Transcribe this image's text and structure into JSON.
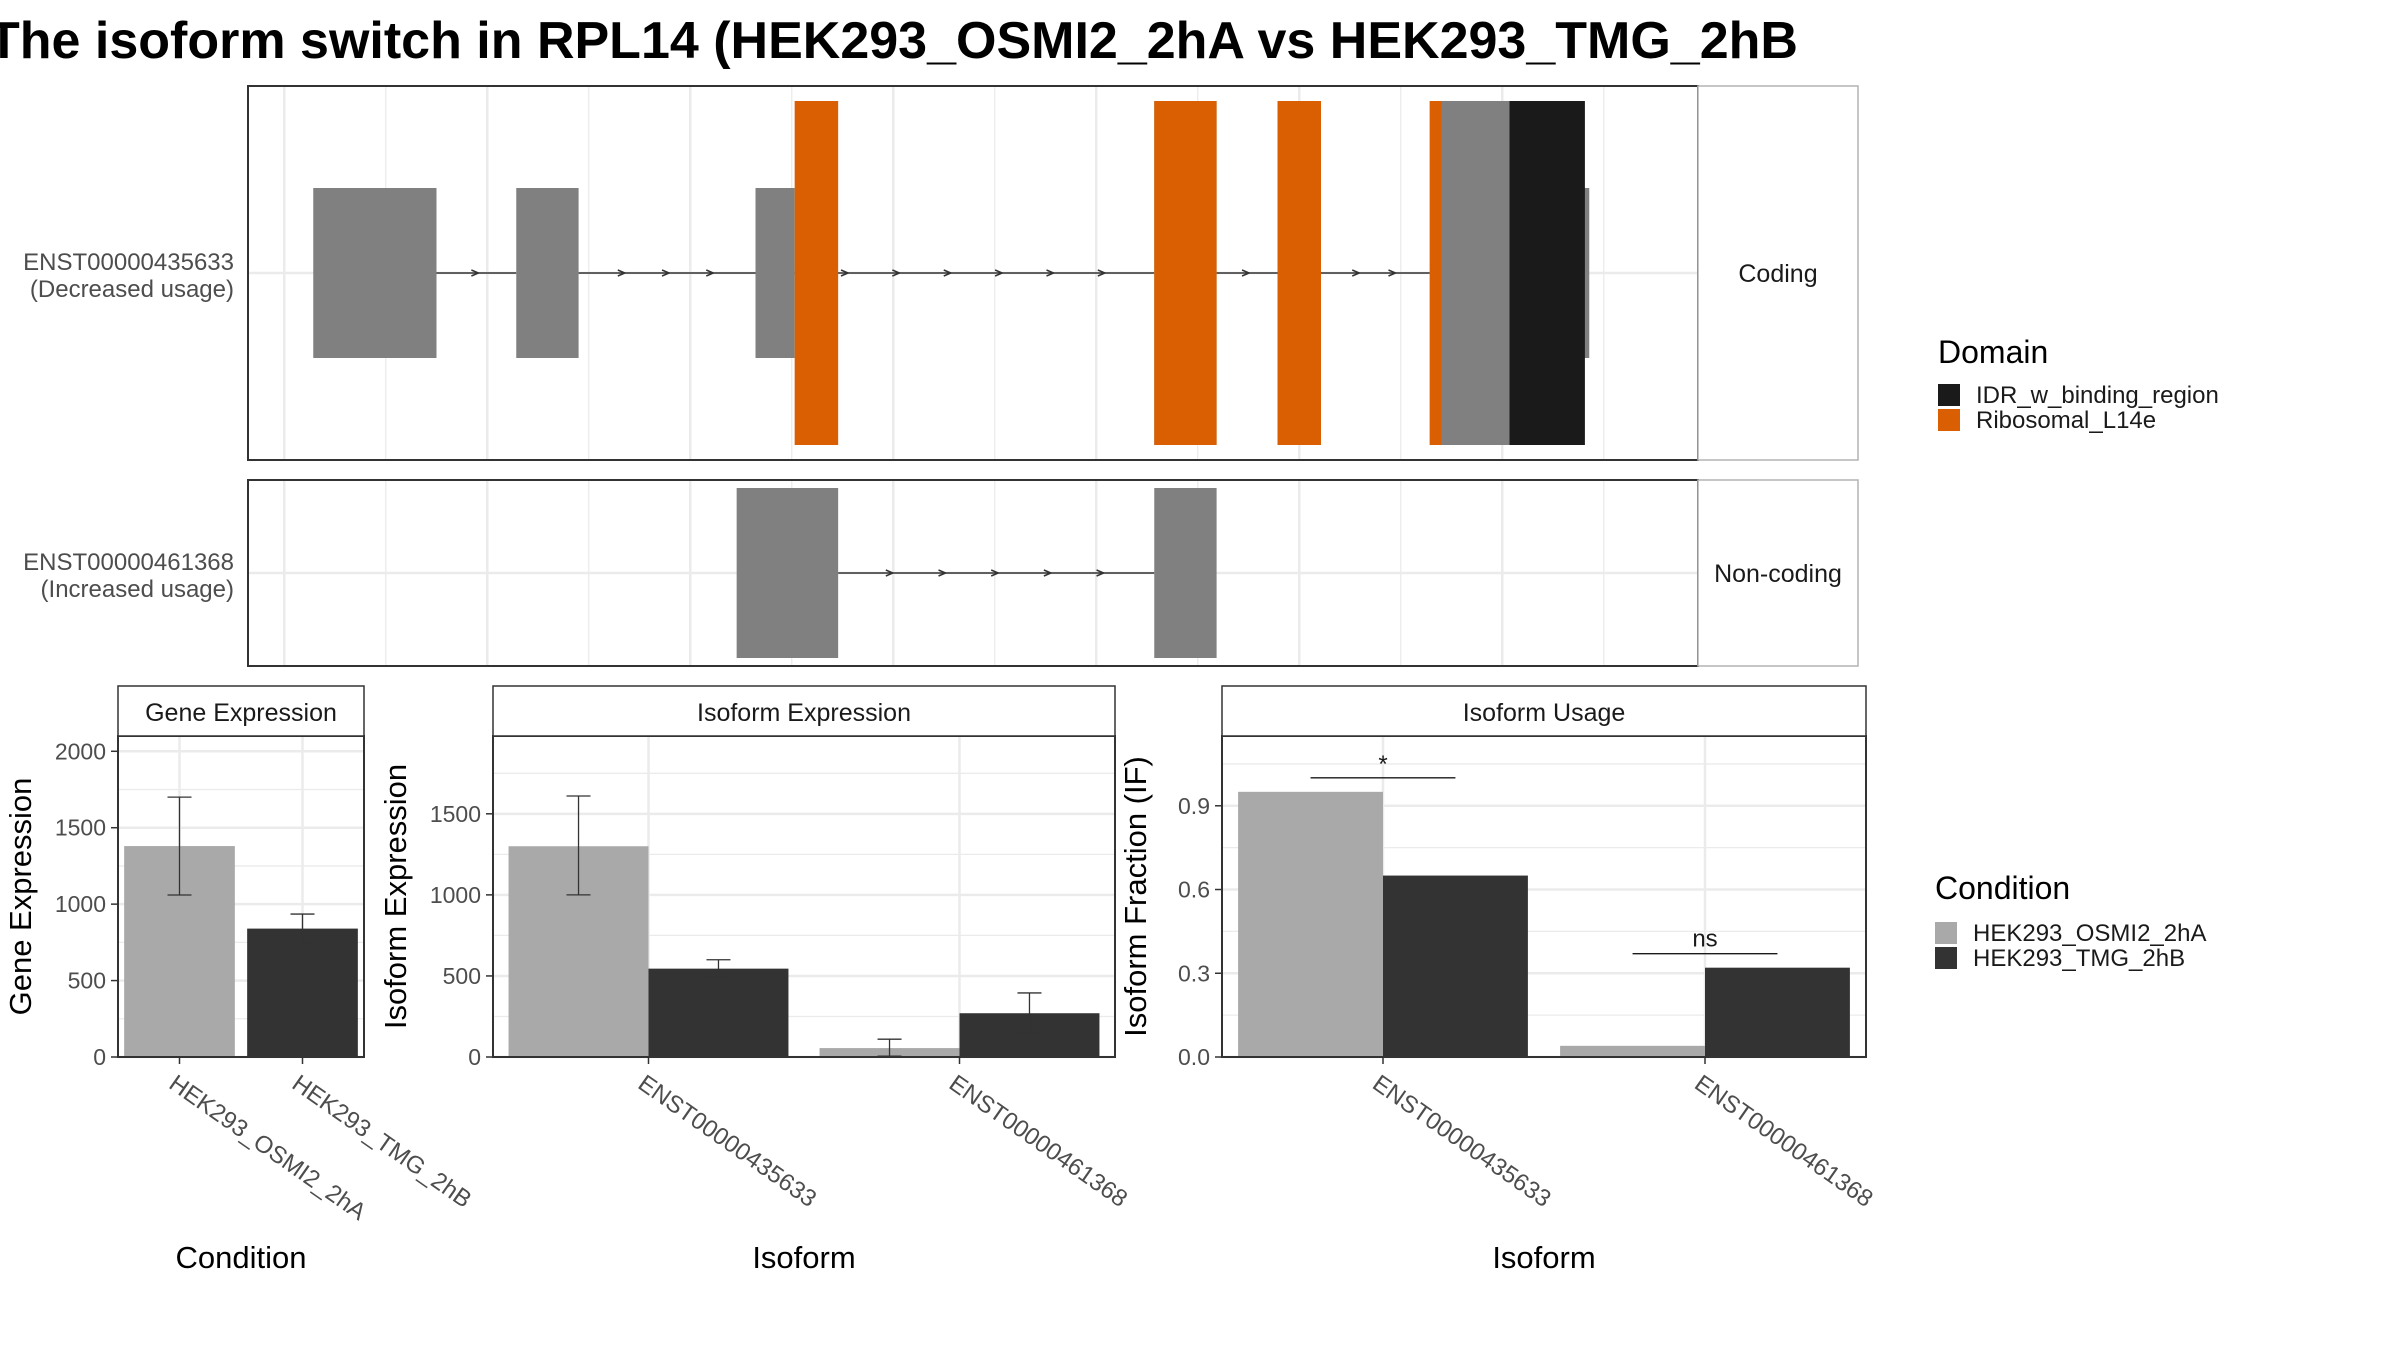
{
  "title": "The isoform switch in RPL14 (HEK293_OSMI2_2hA vs HEK293_TMG_2hB",
  "colors": {
    "exon": "#808080",
    "IDR_w_binding_region": "#1a1a1a",
    "Ribosomal_L14e": "#d95f02",
    "cond_a": "#a9a9a9",
    "cond_b": "#333333",
    "panel_border": "#333333",
    "strip_border": "#b3b3b3",
    "grid": "#ebebeb",
    "intron": "#333333"
  },
  "structure": {
    "transcripts": [
      {
        "id": "ENST00000435633",
        "usage_label": "(Decreased usage)",
        "category": "Coding",
        "exons": [
          [
            0.045,
            0.13
          ],
          [
            0.185,
            0.228
          ],
          [
            0.35,
            0.377
          ],
          [
            0.625,
            0.668
          ],
          [
            0.71,
            0.74
          ],
          [
            0.815,
            0.925
          ]
        ],
        "domains": [
          {
            "name": "Ribosomal_L14e",
            "start": 0.377,
            "end": 0.407
          },
          {
            "name": "Ribosomal_L14e",
            "start": 0.625,
            "end": 0.668
          },
          {
            "name": "Ribosomal_L14e",
            "start": 0.71,
            "end": 0.74
          },
          {
            "name": "Ribosomal_L14e",
            "start": 0.815,
            "end": 0.823
          },
          {
            "name": "IDR_w_binding_region",
            "start": 0.87,
            "end": 0.922
          }
        ],
        "cds": [
          0.377,
          0.91
        ]
      },
      {
        "id": "ENST00000461368",
        "usage_label": "(Increased usage)",
        "category": "Non-coding",
        "exons": [
          [
            0.337,
            0.407
          ],
          [
            0.625,
            0.668
          ]
        ],
        "domains": [],
        "cds": null
      }
    ]
  },
  "legends": {
    "domain_title": "Domain",
    "domain_items": [
      {
        "label": "IDR_w_binding_region",
        "color": "#1a1a1a"
      },
      {
        "label": "Ribosomal_L14e",
        "color": "#d95f02"
      }
    ],
    "condition_title": "Condition",
    "condition_items": [
      {
        "label": "HEK293_OSMI2_2hA",
        "color": "#a9a9a9"
      },
      {
        "label": "HEK293_TMG_2hB",
        "color": "#333333"
      }
    ]
  },
  "chart_data": [
    {
      "type": "bar",
      "title": "Gene Expression",
      "xlabel": "Condition",
      "ylabel": "Gene Expression",
      "categories": [
        "HEK293_OSMI2_2hA",
        "HEK293_TMG_2hB"
      ],
      "values": [
        1380,
        840
      ],
      "error": [
        [
          1060,
          1700
        ],
        [
          745,
          935
        ]
      ],
      "ylim": [
        0,
        2100
      ],
      "yticks": [
        0,
        500,
        1000,
        1500,
        2000
      ],
      "grid": true
    },
    {
      "type": "bar",
      "title": "Isoform Expression",
      "xlabel": "Isoform",
      "ylabel": "Isoform Expression",
      "categories": [
        "ENST00000435633",
        "ENST00000461368"
      ],
      "series": [
        {
          "name": "HEK293_OSMI2_2hA",
          "values": [
            1300,
            55
          ],
          "error": [
            [
              1000,
              1610
            ],
            [
              5,
              110
            ]
          ]
        },
        {
          "name": "HEK293_TMG_2hB",
          "values": [
            545,
            270
          ],
          "error": [
            [
              495,
              600
            ],
            [
              150,
              395
            ]
          ]
        }
      ],
      "ylim": [
        0,
        1980
      ],
      "yticks": [
        0,
        500,
        1000,
        1500
      ],
      "grid": true
    },
    {
      "type": "bar",
      "title": "Isoform Usage",
      "xlabel": "Isoform",
      "ylabel": "Isoform Fraction (IF)",
      "categories": [
        "ENST00000435633",
        "ENST00000461368"
      ],
      "series": [
        {
          "name": "HEK293_OSMI2_2hA",
          "values": [
            0.95,
            0.04
          ]
        },
        {
          "name": "HEK293_TMG_2hB",
          "values": [
            0.65,
            0.32
          ]
        }
      ],
      "significance": [
        "*",
        "ns"
      ],
      "ylim": [
        0,
        1.15
      ],
      "yticks": [
        0.0,
        0.3,
        0.6,
        0.9
      ],
      "grid": true
    }
  ]
}
